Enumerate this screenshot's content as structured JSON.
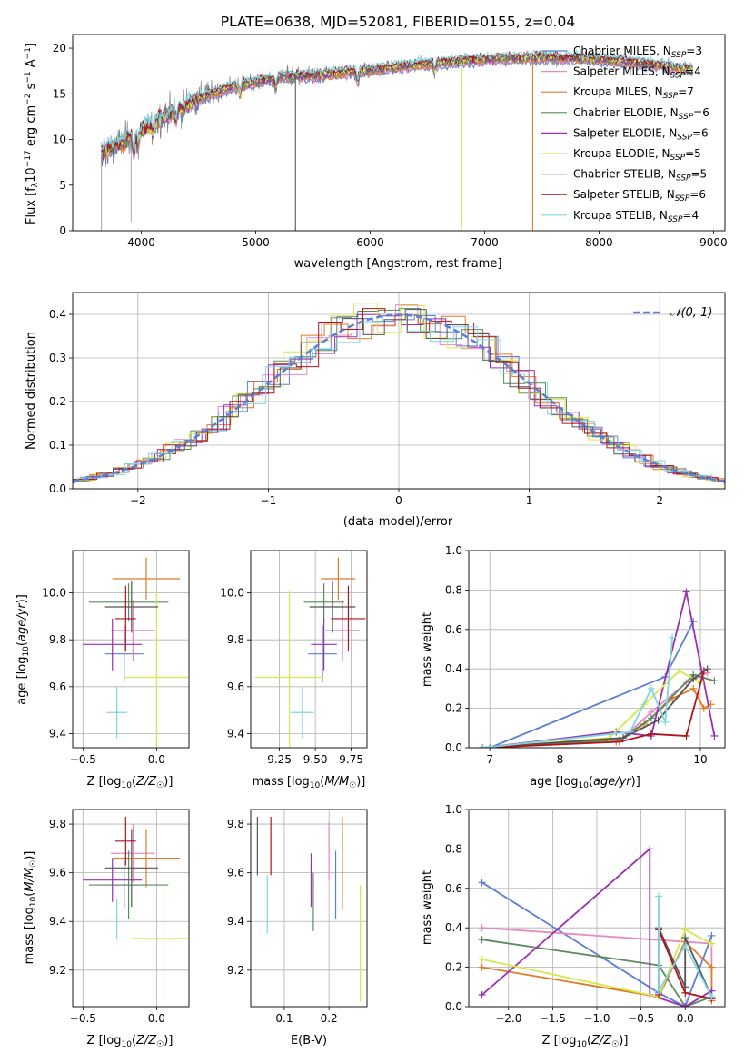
{
  "title": "PLATE=0638, MJD=52081, FIBERID=0155, z=0.04",
  "colors": {
    "chabrier_miles": "#5b7fd6",
    "salpeter_miles": "#e58ac5",
    "kroupa_miles": "#e07b2a",
    "chabrier_elodie": "#5b8a5b",
    "salpeter_elodie": "#9a2fb0",
    "kroupa_elodie": "#d6e84a",
    "chabrier_stelib": "#555555",
    "salpeter_stelib": "#b0141b",
    "kroupa_stelib": "#7fd6e0",
    "grid": "#b0b0b0"
  },
  "legend_spectrum": [
    "Chabrier MILES, N$_{SSP}$=3",
    "Salpeter MILES, N$_{SSP}$=4",
    "Kroupa MILES, N$_{SSP}$=7",
    "Chabrier ELODIE, N$_{SSP}$=6",
    "Salpeter ELODIE, N$_{SSP}$=6",
    "Kroupa ELODIE, N$_{SSP}$=5",
    "Chabrier STELIB, N$_{SSP}$=5",
    "Salpeter STELIB, N$_{SSP}$=6",
    "Kroupa STELIB, N$_{SSP}$=4"
  ],
  "legend_spectrum_display": [
    {
      "prefix": "Chabrier MILES, N",
      "n": "3"
    },
    {
      "prefix": "Salpeter MILES, N",
      "n": "4"
    },
    {
      "prefix": "Kroupa MILES, N",
      "n": "7"
    },
    {
      "prefix": "Chabrier ELODIE, N",
      "n": "6"
    },
    {
      "prefix": "Salpeter ELODIE, N",
      "n": "6"
    },
    {
      "prefix": "Kroupa ELODIE, N",
      "n": "5"
    },
    {
      "prefix": "Chabrier STELIB, N",
      "n": "5"
    },
    {
      "prefix": "Salpeter STELIB, N",
      "n": "6"
    },
    {
      "prefix": "Kroupa STELIB, N",
      "n": "4"
    }
  ],
  "legend_sub": "SSP",
  "chart_data": [
    {
      "id": "spectrum",
      "type": "line",
      "xlabel": "wavelength [Angstrom, rest frame]",
      "ylabel": "Flux [f_λ 10^-17 erg cm^-2 s^-1 A^-1]",
      "ylabel_parts": {
        "a": "Flux [f",
        "b": "λ",
        "c": "10",
        "d": "−17",
        "e": " erg cm",
        "f": "−2",
        "g": " s",
        "h": "−1",
        "i": " A",
        "j": "−1",
        "k": "]"
      },
      "xlim": [
        3400,
        9100
      ],
      "ylim": [
        0,
        21.5
      ],
      "xticks": [
        4000,
        5000,
        6000,
        7000,
        8000,
        9000
      ],
      "yticks": [
        0,
        5,
        10,
        15,
        20
      ],
      "data_trend": {
        "x": [
          3650,
          3800,
          4000,
          4200,
          4500,
          4800,
          5000,
          5200,
          5500,
          6000,
          6500,
          7000,
          7500,
          8000,
          8500,
          8800
        ],
        "y": [
          8.5,
          9.5,
          11.0,
          12.5,
          14.5,
          15.8,
          16.3,
          16.8,
          17.0,
          17.6,
          18.3,
          18.8,
          19.0,
          18.8,
          18.2,
          17.6
        ]
      }
    },
    {
      "id": "residuals",
      "type": "histogram",
      "xlabel": "(data-model)/error",
      "ylabel": "Normed distribution",
      "legend": "𝒩(0, 1)",
      "xlim": [
        -2.5,
        2.5
      ],
      "ylim": [
        0,
        0.45
      ],
      "xticks": [
        -2,
        -1,
        0,
        1,
        2
      ],
      "xtick_labels": [
        "−2",
        "−1",
        "0",
        "1",
        "2"
      ],
      "yticks": [
        0,
        0.1,
        0.2,
        0.3,
        0.4
      ],
      "ytick_labels": [
        "0.0",
        "0.1",
        "0.2",
        "0.3",
        "0.4"
      ]
    },
    {
      "id": "age_vs_Z",
      "type": "scatter",
      "xlabel": "Z [log10(Z/Z☉)]",
      "ylabel": "age [log10(age/yr)]",
      "xlim": [
        -0.57,
        0.22
      ],
      "ylim": [
        9.34,
        10.18
      ],
      "xticks": [
        -0.5,
        0.0
      ],
      "xtick_labels": [
        "−0.5",
        "0.0"
      ],
      "yticks": [
        9.4,
        9.6,
        9.8,
        10.0
      ],
      "ytick_labels": [
        "9.4",
        "9.6",
        "9.8",
        "10.0"
      ],
      "points": [
        {
          "series": "chabrier_miles",
          "x": -0.22,
          "xerr": 0.13,
          "y": 9.74,
          "yerr": 0.12
        },
        {
          "series": "salpeter_miles",
          "x": -0.16,
          "xerr": 0.15,
          "y": 9.84,
          "yerr": 0.13
        },
        {
          "series": "kroupa_miles",
          "x": -0.07,
          "xerr": 0.23,
          "y": 10.06,
          "yerr": 0.09
        },
        {
          "series": "chabrier_elodie",
          "x": -0.19,
          "xerr": 0.27,
          "y": 9.96,
          "yerr": 0.08
        },
        {
          "series": "salpeter_elodie",
          "x": -0.3,
          "xerr": 0.2,
          "y": 9.78,
          "yerr": 0.11
        },
        {
          "series": "kroupa_elodie",
          "x": 0.0,
          "xerr": 0.22,
          "y": 9.64,
          "yerr": 0.37
        },
        {
          "series": "chabrier_stelib",
          "x": -0.17,
          "xerr": 0.18,
          "y": 9.94,
          "yerr": 0.11
        },
        {
          "series": "salpeter_stelib",
          "x": -0.21,
          "xerr": 0.07,
          "y": 9.89,
          "yerr": 0.14
        },
        {
          "series": "kroupa_stelib",
          "x": -0.27,
          "xerr": 0.07,
          "y": 9.49,
          "yerr": 0.11
        }
      ]
    },
    {
      "id": "age_vs_mass",
      "type": "scatter",
      "xlabel": "mass [log10(M/M☉)]",
      "xlim": [
        9.05,
        9.86
      ],
      "ylim": [
        9.34,
        10.18
      ],
      "xticks": [
        9.25,
        9.5,
        9.75
      ],
      "xtick_labels": [
        "9.25",
        "9.50",
        "9.75"
      ],
      "yticks": [
        9.4,
        9.6,
        9.8,
        10.0
      ],
      "ytick_labels": [
        "9.4",
        "9.6",
        "9.8",
        "10.0"
      ],
      "points": [
        {
          "series": "chabrier_miles",
          "x": 9.55,
          "xerr": 0.1,
          "y": 9.74,
          "yerr": 0.12
        },
        {
          "series": "salpeter_miles",
          "x": 9.69,
          "xerr": 0.12,
          "y": 9.84,
          "yerr": 0.13
        },
        {
          "series": "kroupa_miles",
          "x": 9.66,
          "xerr": 0.12,
          "y": 10.06,
          "yerr": 0.09
        },
        {
          "series": "chabrier_elodie",
          "x": 9.56,
          "xerr": 0.14,
          "y": 9.96,
          "yerr": 0.08
        },
        {
          "series": "salpeter_elodie",
          "x": 9.56,
          "xerr": 0.09,
          "y": 9.78,
          "yerr": 0.11
        },
        {
          "series": "kroupa_elodie",
          "x": 9.32,
          "xerr": 0.24,
          "y": 9.64,
          "yerr": 0.37
        },
        {
          "series": "chabrier_stelib",
          "x": 9.62,
          "xerr": 0.16,
          "y": 9.94,
          "yerr": 0.11
        },
        {
          "series": "salpeter_stelib",
          "x": 9.73,
          "xerr": 0.12,
          "y": 9.89,
          "yerr": 0.14
        },
        {
          "series": "kroupa_stelib",
          "x": 9.41,
          "xerr": 0.08,
          "y": 9.49,
          "yerr": 0.11
        }
      ]
    },
    {
      "id": "weight_vs_age",
      "type": "line",
      "xlabel": "age [log10(age/yr)]",
      "ylabel": "mass weight",
      "xlim": [
        6.7,
        10.35
      ],
      "ylim": [
        0,
        1.0
      ],
      "xticks": [
        7,
        8,
        9,
        10
      ],
      "yticks": [
        0,
        0.2,
        0.4,
        0.6,
        0.8,
        1.0
      ],
      "ytick_labels": [
        "0.0",
        "0.2",
        "0.4",
        "0.6",
        "0.8",
        "1.0"
      ],
      "series": [
        {
          "name": "chabrier_miles",
          "x": [
            7.0,
            9.5,
            9.9
          ],
          "y": [
            0.0,
            0.36,
            0.64
          ]
        },
        {
          "name": "salpeter_miles",
          "x": [
            6.9,
            8.9,
            9.3,
            9.8,
            10.1
          ],
          "y": [
            0.0,
            0.05,
            0.18,
            0.33,
            0.38
          ]
        },
        {
          "name": "kroupa_miles",
          "x": [
            6.9,
            8.8,
            9.2,
            9.6,
            9.9,
            10.05,
            10.15
          ],
          "y": [
            0.0,
            0.03,
            0.12,
            0.25,
            0.3,
            0.2,
            0.22
          ]
        },
        {
          "name": "chabrier_elodie",
          "x": [
            6.9,
            8.85,
            9.3,
            9.9,
            10.2
          ],
          "y": [
            0.0,
            0.04,
            0.15,
            0.37,
            0.34
          ]
        },
        {
          "name": "salpeter_elodie",
          "x": [
            6.9,
            8.8,
            9.3,
            9.8,
            10.2
          ],
          "y": [
            0.0,
            0.08,
            0.06,
            0.79,
            0.06
          ]
        },
        {
          "name": "kroupa_elodie",
          "x": [
            6.9,
            8.7,
            9.2,
            9.7,
            10.0
          ],
          "y": [
            0.0,
            0.05,
            0.22,
            0.39,
            0.33
          ]
        },
        {
          "name": "chabrier_stelib",
          "x": [
            6.9,
            8.9,
            9.4,
            9.9,
            10.1
          ],
          "y": [
            0.0,
            0.05,
            0.14,
            0.35,
            0.4
          ]
        },
        {
          "name": "salpeter_stelib",
          "x": [
            6.9,
            8.85,
            9.3,
            9.8,
            10.05
          ],
          "y": [
            0.0,
            0.03,
            0.07,
            0.06,
            0.39
          ]
        },
        {
          "name": "kroupa_stelib",
          "x": [
            6.9,
            9.0,
            9.3,
            9.5,
            9.6
          ],
          "y": [
            0.0,
            0.08,
            0.3,
            0.13,
            0.56
          ]
        }
      ]
    },
    {
      "id": "mass_vs_Z",
      "type": "scatter",
      "xlabel": "Z [log10(Z/Z☉)]",
      "ylabel": "mass [log10(M/M☉)]",
      "xlim": [
        -0.57,
        0.22
      ],
      "ylim": [
        9.05,
        9.86
      ],
      "xticks": [
        -0.5,
        0.0
      ],
      "xtick_labels": [
        "−0.5",
        "0.0"
      ],
      "yticks": [
        9.2,
        9.4,
        9.6,
        9.8
      ],
      "ytick_labels": [
        "9.2",
        "9.4",
        "9.6",
        "9.8"
      ],
      "points": [
        {
          "series": "chabrier_miles",
          "x": -0.22,
          "xerr": 0.13,
          "y": 9.55,
          "yerr": 0.1
        },
        {
          "series": "salpeter_miles",
          "x": -0.16,
          "xerr": 0.15,
          "y": 9.68,
          "yerr": 0.12
        },
        {
          "series": "kroupa_miles",
          "x": -0.07,
          "xerr": 0.23,
          "y": 9.66,
          "yerr": 0.12
        },
        {
          "series": "chabrier_elodie",
          "x": -0.19,
          "xerr": 0.27,
          "y": 9.55,
          "yerr": 0.14
        },
        {
          "series": "salpeter_elodie",
          "x": -0.3,
          "xerr": 0.2,
          "y": 9.57,
          "yerr": 0.09
        },
        {
          "series": "kroupa_elodie",
          "x": 0.05,
          "xerr": 0.22,
          "y": 9.33,
          "yerr": 0.24
        },
        {
          "series": "chabrier_stelib",
          "x": -0.17,
          "xerr": 0.18,
          "y": 9.62,
          "yerr": 0.16
        },
        {
          "series": "salpeter_stelib",
          "x": -0.21,
          "xerr": 0.07,
          "y": 9.73,
          "yerr": 0.1
        },
        {
          "series": "kroupa_stelib",
          "x": -0.27,
          "xerr": 0.07,
          "y": 9.41,
          "yerr": 0.08
        }
      ]
    },
    {
      "id": "mass_vs_ebv",
      "type": "scatter",
      "xlabel": "E(B-V)",
      "xlim": [
        0.025,
        0.285
      ],
      "ylim": [
        9.05,
        9.86
      ],
      "xticks": [
        0.1,
        0.2
      ],
      "xtick_labels": [
        "0.1",
        "0.2"
      ],
      "yticks": [
        9.2,
        9.4,
        9.6,
        9.8
      ],
      "ytick_labels": [
        "9.2",
        "9.4",
        "9.6",
        "9.8"
      ],
      "points": [
        {
          "series": "chabrier_miles",
          "x": 0.215,
          "y": 9.55,
          "yerr": 0.14
        },
        {
          "series": "salpeter_miles",
          "x": 0.2,
          "y": 9.69,
          "yerr": 0.12
        },
        {
          "series": "kroupa_miles",
          "x": 0.23,
          "y": 9.64,
          "yerr": 0.19
        },
        {
          "series": "chabrier_elodie",
          "x": 0.165,
          "y": 9.48,
          "yerr": 0.12
        },
        {
          "series": "salpeter_elodie",
          "x": 0.16,
          "y": 9.57,
          "yerr": 0.11
        },
        {
          "series": "kroupa_elodie",
          "x": 0.27,
          "y": 9.31,
          "yerr": 0.24
        },
        {
          "series": "chabrier_stelib",
          "x": 0.04,
          "y": 9.71,
          "yerr": 0.12
        },
        {
          "series": "salpeter_stelib",
          "x": 0.07,
          "y": 9.71,
          "yerr": 0.12
        },
        {
          "series": "kroupa_stelib",
          "x": 0.062,
          "y": 9.47,
          "yerr": 0.12
        }
      ]
    },
    {
      "id": "weight_vs_Z",
      "type": "line",
      "xlabel": "Z [log10(Z/Z☉)]",
      "ylabel": "mass weight",
      "xlim": [
        -2.45,
        0.45
      ],
      "ylim": [
        0,
        1.0
      ],
      "xticks": [
        -2.0,
        -1.5,
        -1.0,
        -0.5,
        0.0
      ],
      "xtick_labels": [
        "−2.0",
        "−1.5",
        "−1.0",
        "−0.5",
        "0.0"
      ],
      "yticks": [
        0,
        0.2,
        0.4,
        0.6,
        0.8,
        1.0
      ],
      "ytick_labels": [
        "0.0",
        "0.2",
        "0.4",
        "0.6",
        "0.8",
        "1.0"
      ],
      "series": [
        {
          "name": "chabrier_miles",
          "x": [
            -2.3,
            -0.3,
            0.0,
            0.3
          ],
          "y": [
            0.63,
            0.07,
            0.0,
            0.36
          ]
        },
        {
          "name": "salpeter_miles",
          "x": [
            -2.3,
            0.3,
            0.3
          ],
          "y": [
            0.4,
            0.32,
            0.04
          ]
        },
        {
          "name": "kroupa_miles",
          "x": [
            -2.3,
            -0.3,
            0.0,
            0.3,
            0.3
          ],
          "y": [
            0.2,
            0.05,
            0.33,
            0.2,
            0.03
          ]
        },
        {
          "name": "chabrier_elodie",
          "x": [
            -2.3,
            -0.3,
            0.0,
            0.3
          ],
          "y": [
            0.34,
            0.21,
            0.0,
            0.05
          ]
        },
        {
          "name": "salpeter_elodie",
          "x": [
            -2.3,
            -0.4,
            -0.4,
            0.0,
            0.3
          ],
          "y": [
            0.06,
            0.8,
            0.06,
            0.0,
            0.08
          ]
        },
        {
          "name": "kroupa_elodie",
          "x": [
            -2.3,
            -0.3,
            0.0,
            0.3
          ],
          "y": [
            0.24,
            0.05,
            0.39,
            0.32
          ]
        },
        {
          "name": "chabrier_stelib",
          "x": [
            -0.3,
            0.0,
            0.0,
            0.3
          ],
          "y": [
            0.4,
            0.1,
            0.35,
            0.05
          ]
        },
        {
          "name": "salpeter_stelib",
          "x": [
            -0.3,
            -0.3,
            0.0,
            0.3
          ],
          "y": [
            0.06,
            0.39,
            0.07,
            0.04
          ]
        },
        {
          "name": "kroupa_stelib",
          "x": [
            -0.3,
            -0.3,
            0.0,
            0.3
          ],
          "y": [
            0.56,
            0.08,
            0.31,
            0.05
          ]
        }
      ]
    }
  ]
}
